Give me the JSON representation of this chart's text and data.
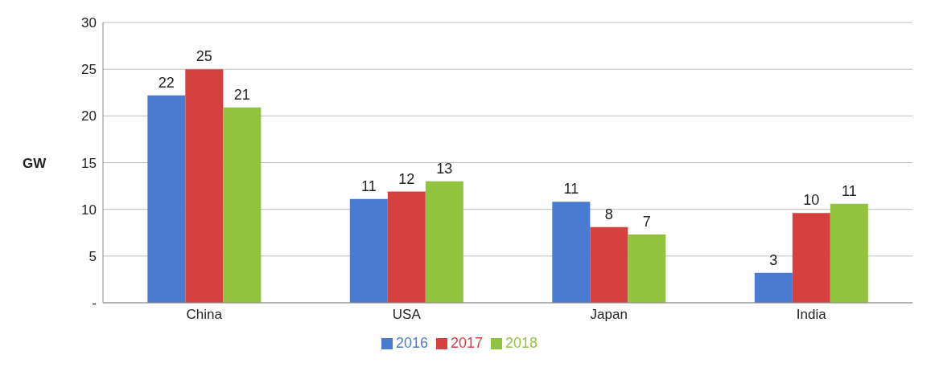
{
  "chart_data": {
    "type": "bar",
    "ylabel": "GW",
    "categories": [
      "China",
      "USA",
      "Japan",
      "India"
    ],
    "series": [
      {
        "name": "2016",
        "color": "#4a7bd0",
        "values": [
          22.2,
          11.1,
          10.8,
          3.2
        ],
        "value_labels": [
          "22",
          "11",
          "11",
          "3"
        ]
      },
      {
        "name": "2017",
        "color": "#d6403f",
        "values": [
          25,
          11.9,
          8.1,
          9.6
        ],
        "value_labels": [
          "25",
          "12",
          "8",
          "10"
        ]
      },
      {
        "name": "2018",
        "color": "#92c33f",
        "values": [
          20.9,
          13,
          7.3,
          10.6
        ],
        "value_labels": [
          "21",
          "13",
          "7",
          "11"
        ]
      }
    ],
    "ylim": [
      0,
      30
    ],
    "yticks": [
      {
        "value": 0,
        "label": "-"
      },
      5,
      10,
      15,
      20,
      25,
      30
    ],
    "grid": "y",
    "legend": "bottom"
  }
}
